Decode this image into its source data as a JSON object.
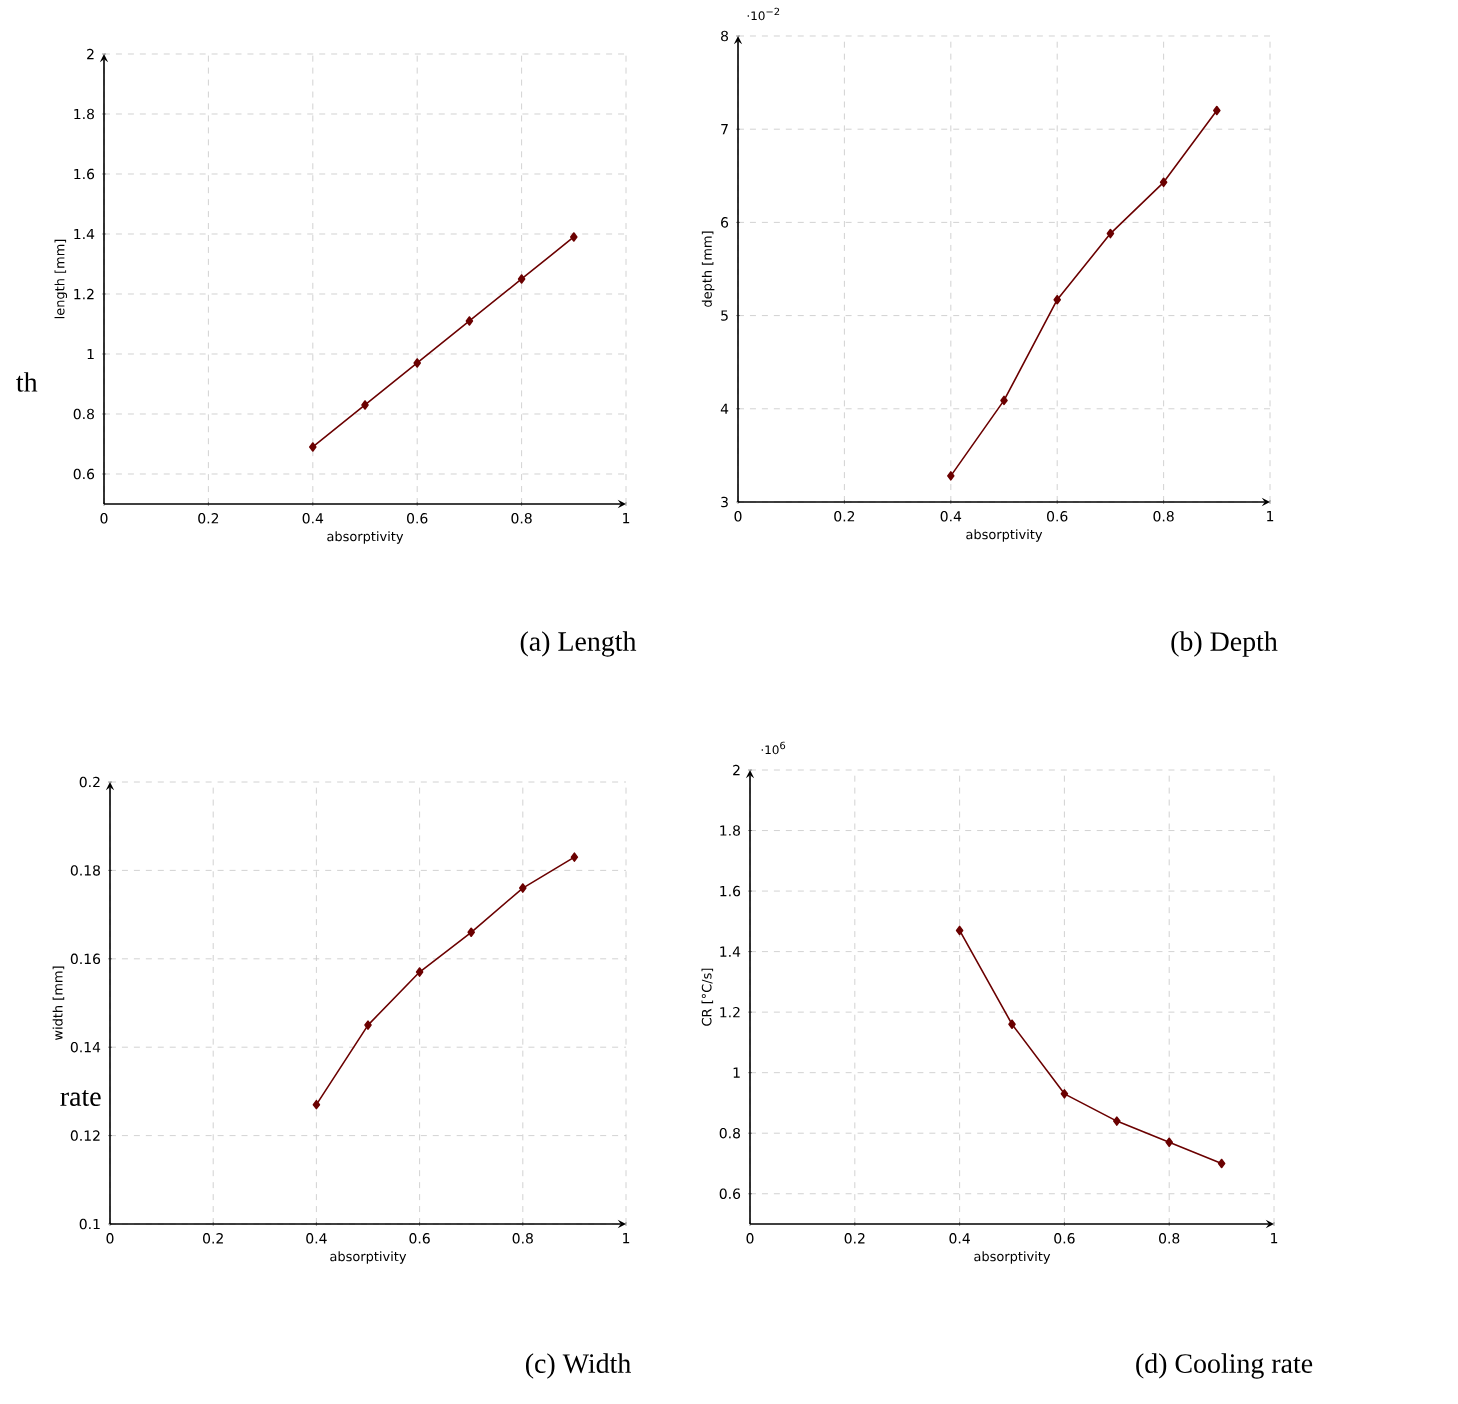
{
  "chart_data": [
    {
      "type": "line",
      "title": "(a) Length",
      "xlabel": "absorptivity",
      "ylabel": "length [mm]",
      "annotations": [
        "th"
      ],
      "x": [
        0.4,
        0.5,
        0.6,
        0.7,
        0.8,
        0.9
      ],
      "series": [
        {
          "color": "#6b0000",
          "values": [
            0.69,
            0.83,
            0.97,
            1.11,
            1.25,
            1.39
          ]
        }
      ],
      "xlim": [
        0,
        1
      ],
      "ylim": [
        0.5,
        2
      ],
      "xticks": [
        0,
        0.2,
        0.4,
        0.6,
        0.8,
        1
      ],
      "yticks": [
        0.6,
        0.8,
        1,
        1.2,
        1.4,
        1.6,
        1.8,
        2
      ],
      "grid": true,
      "marker": "diamond"
    },
    {
      "type": "line",
      "title": "(b) Depth",
      "xlabel": "absorptivity",
      "ylabel": "depth [mm]",
      "annotations": [
        "·10$^{−2}$"
      ],
      "x": [
        0.4,
        0.5,
        0.6,
        0.7,
        0.8,
        0.9
      ],
      "series": [
        {
          "color": "#6b0000",
          "values": [
            3.28,
            4.09,
            5.17,
            5.88,
            6.43,
            7.2
          ]
        }
      ],
      "xlim": [
        0,
        1
      ],
      "ylim": [
        3,
        8
      ],
      "xticks": [
        0,
        0.2,
        0.4,
        0.6,
        0.8,
        1
      ],
      "yticks": [
        3,
        4,
        5,
        6,
        7,
        8
      ],
      "grid": true,
      "marker": "diamond"
    },
    {
      "type": "line",
      "title": "(c) Width",
      "xlabel": "absorptivity",
      "ylabel": "width [mm]",
      "annotations": [
        "rate"
      ],
      "x": [
        0.4,
        0.5,
        0.6,
        0.7,
        0.8,
        0.9
      ],
      "series": [
        {
          "color": "#6b0000",
          "values": [
            0.127,
            0.145,
            0.157,
            0.166,
            0.176,
            0.183
          ]
        }
      ],
      "xlim": [
        0,
        1
      ],
      "ylim": [
        0.1,
        0.2
      ],
      "xticks": [
        0,
        0.2,
        0.4,
        0.6,
        0.8,
        1
      ],
      "yticks": [
        0.1,
        0.12,
        0.14,
        0.16,
        0.18,
        0.2
      ],
      "grid": true,
      "marker": "diamond"
    },
    {
      "type": "line",
      "title": "(d) Cooling rate",
      "xlabel": "absorptivity",
      "ylabel": "CR [°C/s]",
      "annotations": [
        "·10$^{6}$"
      ],
      "x": [
        0.4,
        0.5,
        0.6,
        0.7,
        0.8,
        0.9
      ],
      "series": [
        {
          "color": "#6b0000",
          "values": [
            1.47,
            1.16,
            0.93,
            0.84,
            0.77,
            0.7
          ]
        }
      ],
      "xlim": [
        0,
        1
      ],
      "ylim": [
        0.5,
        2
      ],
      "xticks": [
        0,
        0.2,
        0.4,
        0.6,
        0.8,
        1
      ],
      "yticks": [
        0.6,
        0.8,
        1,
        1.2,
        1.4,
        1.6,
        1.8,
        2
      ],
      "grid": true,
      "marker": "diamond"
    }
  ]
}
